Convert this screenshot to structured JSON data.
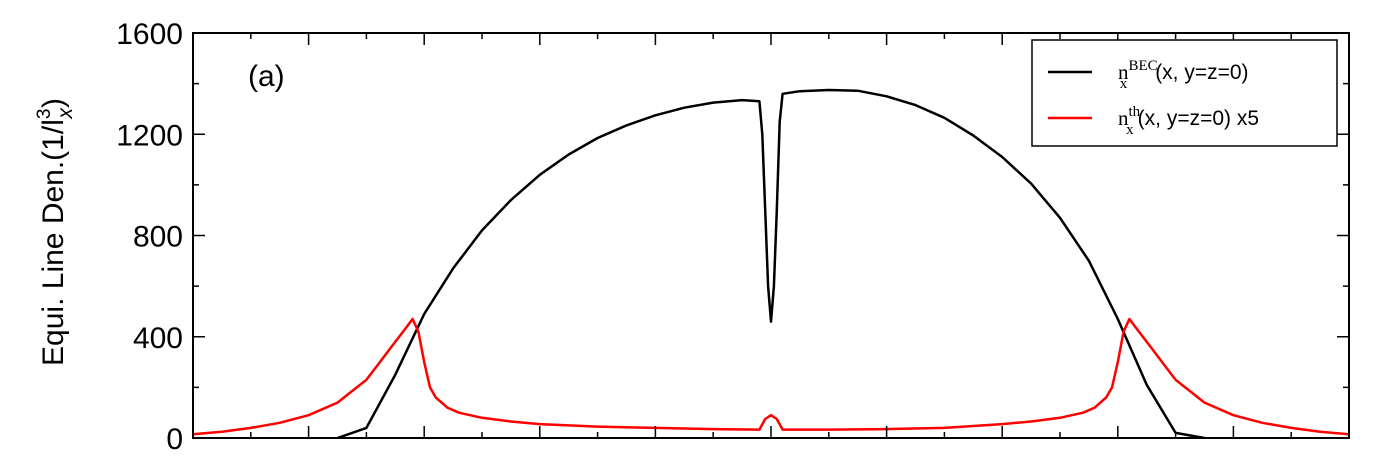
{
  "chart_data": {
    "type": "line",
    "title": "",
    "panel_label": "(a)",
    "ylabel": {
      "prefix": "Equi. Line Den.(1/",
      "base": "l",
      "exponent": "3",
      "subscript": "x",
      "suffix": ")"
    },
    "xlabel": "",
    "ylim": [
      0,
      1600
    ],
    "xlim": [
      -1,
      1
    ],
    "yticks": [
      0,
      400,
      800,
      1200,
      1600
    ],
    "ytick_labels": [
      "0",
      "400",
      "800",
      "1200",
      "1600"
    ],
    "legend_position": "top-right",
    "grid": false,
    "series": [
      {
        "name": "n_x^BEC(x, y=z=0)",
        "legend": {
          "base": "n",
          "sub": "x",
          "sup": "BEC",
          "rest": "(x, y=z=0)"
        },
        "color": "#000000",
        "x": [
          -0.75,
          -0.7,
          -0.65,
          -0.6,
          -0.55,
          -0.5,
          -0.45,
          -0.4,
          -0.35,
          -0.3,
          -0.25,
          -0.2,
          -0.15,
          -0.1,
          -0.05,
          -0.02,
          -0.015,
          -0.01,
          -0.005,
          0.0,
          0.005,
          0.01,
          0.015,
          0.02,
          0.05,
          0.1,
          0.15,
          0.2,
          0.25,
          0.3,
          0.35,
          0.4,
          0.45,
          0.5,
          0.55,
          0.6,
          0.65,
          0.7,
          0.75
        ],
        "y": [
          0,
          40,
          250,
          490,
          670,
          820,
          940,
          1040,
          1120,
          1185,
          1235,
          1275,
          1305,
          1325,
          1335,
          1330,
          1200,
          900,
          600,
          460,
          600,
          900,
          1250,
          1360,
          1370,
          1375,
          1372,
          1350,
          1315,
          1265,
          1195,
          1110,
          1005,
          870,
          700,
          470,
          210,
          20,
          0
        ]
      },
      {
        "name": "n_x^th(x, y=z=0) x5",
        "legend": {
          "base": "n",
          "sub": "x",
          "sup": "th",
          "rest": "(x, y=z=0) x5"
        },
        "color": "#ff0000",
        "x": [
          -1.0,
          -0.95,
          -0.9,
          -0.85,
          -0.8,
          -0.75,
          -0.7,
          -0.68,
          -0.66,
          -0.64,
          -0.63,
          -0.62,
          -0.61,
          -0.6,
          -0.59,
          -0.58,
          -0.56,
          -0.54,
          -0.5,
          -0.45,
          -0.4,
          -0.3,
          -0.2,
          -0.1,
          -0.02,
          -0.01,
          0.0,
          0.01,
          0.02,
          0.05,
          0.1,
          0.2,
          0.3,
          0.4,
          0.45,
          0.5,
          0.54,
          0.56,
          0.58,
          0.59,
          0.6,
          0.61,
          0.62,
          0.63,
          0.64,
          0.66,
          0.68,
          0.7,
          0.75,
          0.8,
          0.85,
          0.9,
          0.95,
          1.0
        ],
        "y": [
          15,
          25,
          40,
          60,
          90,
          140,
          230,
          290,
          350,
          410,
          440,
          470,
          420,
          300,
          200,
          160,
          120,
          100,
          80,
          65,
          55,
          45,
          40,
          35,
          33,
          75,
          90,
          75,
          33,
          33,
          33,
          35,
          40,
          55,
          65,
          80,
          100,
          120,
          160,
          200,
          300,
          420,
          470,
          440,
          410,
          350,
          290,
          230,
          140,
          90,
          60,
          40,
          25,
          15
        ]
      }
    ]
  }
}
